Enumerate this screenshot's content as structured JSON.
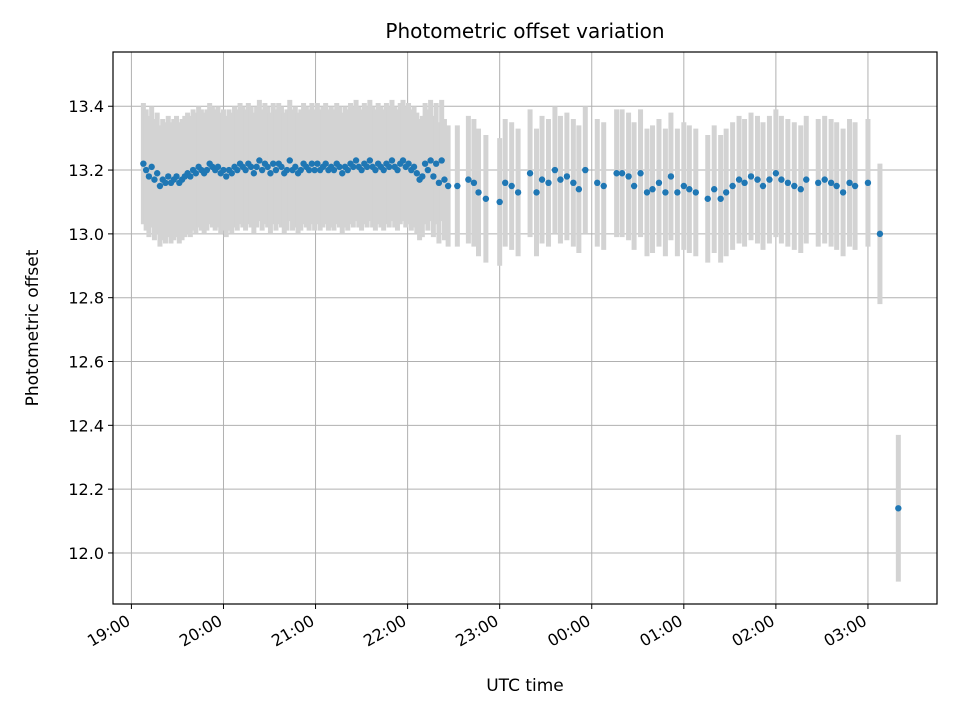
{
  "chart_data": {
    "type": "scatter",
    "title": "Photometric offset variation",
    "xlabel": "UTC time",
    "ylabel": "Photometric offset",
    "x_unit": "UTC time (hours, fractional) from 19:00 onwards; values past 24 wrap to next day",
    "xlim": [
      18.8,
      27.75
    ],
    "ylim": [
      11.84,
      13.57
    ],
    "x_ticks": [
      19,
      20,
      21,
      22,
      23,
      24,
      25,
      26,
      27
    ],
    "x_tick_labels": [
      "19:00",
      "20:00",
      "21:00",
      "22:00",
      "23:00",
      "00:00",
      "01:00",
      "02:00",
      "03:00"
    ],
    "y_ticks": [
      12.0,
      12.2,
      12.4,
      12.6,
      12.8,
      13.0,
      13.2,
      13.4
    ],
    "y_tick_labels": [
      "12.0",
      "12.2",
      "12.4",
      "12.6",
      "12.8",
      "13.0",
      "13.2",
      "13.4"
    ],
    "grid": true,
    "legend": "none",
    "colors": {
      "points": "#1f77b4",
      "errorbars": "#d3d3d3",
      "grid": "#b0b0b0"
    },
    "series": [
      {
        "points": [
          [
            19.13,
            13.22,
            0.19
          ],
          [
            19.16,
            13.2,
            0.19
          ],
          [
            19.19,
            13.18,
            0.19
          ],
          [
            19.22,
            13.21,
            0.19
          ],
          [
            19.25,
            13.17,
            0.19
          ],
          [
            19.28,
            13.19,
            0.19
          ],
          [
            19.31,
            13.15,
            0.19
          ],
          [
            19.34,
            13.17,
            0.19
          ],
          [
            19.37,
            13.16,
            0.19
          ],
          [
            19.4,
            13.18,
            0.19
          ],
          [
            19.43,
            13.16,
            0.19
          ],
          [
            19.46,
            13.17,
            0.19
          ],
          [
            19.49,
            13.18,
            0.19
          ],
          [
            19.52,
            13.16,
            0.19
          ],
          [
            19.55,
            13.17,
            0.19
          ],
          [
            19.58,
            13.18,
            0.19
          ],
          [
            19.61,
            13.19,
            0.19
          ],
          [
            19.64,
            13.18,
            0.19
          ],
          [
            19.67,
            13.2,
            0.19
          ],
          [
            19.7,
            13.19,
            0.19
          ],
          [
            19.73,
            13.21,
            0.19
          ],
          [
            19.76,
            13.2,
            0.19
          ],
          [
            19.79,
            13.19,
            0.19
          ],
          [
            19.82,
            13.2,
            0.19
          ],
          [
            19.85,
            13.22,
            0.19
          ],
          [
            19.88,
            13.21,
            0.19
          ],
          [
            19.91,
            13.2,
            0.19
          ],
          [
            19.94,
            13.21,
            0.19
          ],
          [
            19.97,
            13.19,
            0.19
          ],
          [
            20.0,
            13.2,
            0.19
          ],
          [
            20.03,
            13.18,
            0.19
          ],
          [
            20.06,
            13.2,
            0.19
          ],
          [
            20.09,
            13.19,
            0.19
          ],
          [
            20.12,
            13.21,
            0.19
          ],
          [
            20.15,
            13.2,
            0.19
          ],
          [
            20.18,
            13.22,
            0.19
          ],
          [
            20.21,
            13.21,
            0.19
          ],
          [
            20.24,
            13.2,
            0.19
          ],
          [
            20.27,
            13.22,
            0.19
          ],
          [
            20.3,
            13.21,
            0.19
          ],
          [
            20.33,
            13.19,
            0.19
          ],
          [
            20.36,
            13.21,
            0.19
          ],
          [
            20.39,
            13.23,
            0.19
          ],
          [
            20.42,
            13.2,
            0.19
          ],
          [
            20.45,
            13.22,
            0.19
          ],
          [
            20.48,
            13.21,
            0.19
          ],
          [
            20.51,
            13.19,
            0.19
          ],
          [
            20.54,
            13.22,
            0.19
          ],
          [
            20.57,
            13.2,
            0.19
          ],
          [
            20.6,
            13.22,
            0.19
          ],
          [
            20.63,
            13.21,
            0.19
          ],
          [
            20.66,
            13.19,
            0.19
          ],
          [
            20.69,
            13.2,
            0.19
          ],
          [
            20.72,
            13.23,
            0.19
          ],
          [
            20.75,
            13.2,
            0.19
          ],
          [
            20.78,
            13.21,
            0.19
          ],
          [
            20.81,
            13.19,
            0.19
          ],
          [
            20.84,
            13.2,
            0.19
          ],
          [
            20.87,
            13.22,
            0.19
          ],
          [
            20.9,
            13.21,
            0.19
          ],
          [
            20.93,
            13.2,
            0.19
          ],
          [
            20.96,
            13.22,
            0.19
          ],
          [
            20.99,
            13.2,
            0.19
          ],
          [
            21.02,
            13.22,
            0.19
          ],
          [
            21.05,
            13.2,
            0.19
          ],
          [
            21.08,
            13.21,
            0.19
          ],
          [
            21.11,
            13.22,
            0.19
          ],
          [
            21.14,
            13.2,
            0.19
          ],
          [
            21.17,
            13.21,
            0.19
          ],
          [
            21.2,
            13.2,
            0.19
          ],
          [
            21.23,
            13.22,
            0.19
          ],
          [
            21.26,
            13.21,
            0.19
          ],
          [
            21.29,
            13.19,
            0.19
          ],
          [
            21.32,
            13.21,
            0.19
          ],
          [
            21.35,
            13.2,
            0.19
          ],
          [
            21.38,
            13.22,
            0.19
          ],
          [
            21.41,
            13.21,
            0.19
          ],
          [
            21.44,
            13.23,
            0.19
          ],
          [
            21.47,
            13.21,
            0.19
          ],
          [
            21.5,
            13.2,
            0.19
          ],
          [
            21.53,
            13.22,
            0.19
          ],
          [
            21.56,
            13.21,
            0.19
          ],
          [
            21.59,
            13.23,
            0.19
          ],
          [
            21.62,
            13.21,
            0.19
          ],
          [
            21.65,
            13.2,
            0.19
          ],
          [
            21.68,
            13.22,
            0.19
          ],
          [
            21.71,
            13.21,
            0.19
          ],
          [
            21.74,
            13.2,
            0.19
          ],
          [
            21.77,
            13.22,
            0.19
          ],
          [
            21.8,
            13.21,
            0.19
          ],
          [
            21.83,
            13.23,
            0.19
          ],
          [
            21.86,
            13.21,
            0.19
          ],
          [
            21.89,
            13.2,
            0.19
          ],
          [
            21.92,
            13.22,
            0.19
          ],
          [
            21.95,
            13.23,
            0.19
          ],
          [
            21.98,
            13.21,
            0.19
          ],
          [
            22.01,
            13.22,
            0.19
          ],
          [
            22.04,
            13.2,
            0.19
          ],
          [
            22.07,
            13.21,
            0.19
          ],
          [
            22.1,
            13.19,
            0.19
          ],
          [
            22.13,
            13.17,
            0.19
          ],
          [
            22.16,
            13.18,
            0.19
          ],
          [
            22.19,
            13.22,
            0.19
          ],
          [
            22.22,
            13.2,
            0.19
          ],
          [
            22.25,
            13.23,
            0.19
          ],
          [
            22.28,
            13.18,
            0.19
          ],
          [
            22.31,
            13.22,
            0.19
          ],
          [
            22.34,
            13.16,
            0.19
          ],
          [
            22.37,
            13.23,
            0.19
          ],
          [
            22.4,
            13.17,
            0.19
          ],
          [
            22.44,
            13.15,
            0.19
          ],
          [
            22.54,
            13.15,
            0.19
          ],
          [
            22.66,
            13.17,
            0.2
          ],
          [
            22.72,
            13.16,
            0.2
          ],
          [
            22.77,
            13.13,
            0.2
          ],
          [
            22.85,
            13.11,
            0.2
          ],
          [
            23.0,
            13.1,
            0.2
          ],
          [
            23.06,
            13.16,
            0.2
          ],
          [
            23.13,
            13.15,
            0.2
          ],
          [
            23.2,
            13.13,
            0.2
          ],
          [
            23.33,
            13.19,
            0.2
          ],
          [
            23.4,
            13.13,
            0.2
          ],
          [
            23.46,
            13.17,
            0.2
          ],
          [
            23.53,
            13.16,
            0.2
          ],
          [
            23.6,
            13.2,
            0.2
          ],
          [
            23.66,
            13.17,
            0.2
          ],
          [
            23.73,
            13.18,
            0.2
          ],
          [
            23.8,
            13.16,
            0.2
          ],
          [
            23.86,
            13.14,
            0.2
          ],
          [
            23.93,
            13.2,
            0.2
          ],
          [
            24.06,
            13.16,
            0.2
          ],
          [
            24.13,
            13.15,
            0.2
          ],
          [
            24.27,
            13.19,
            0.2
          ],
          [
            24.33,
            13.19,
            0.2
          ],
          [
            24.4,
            13.18,
            0.2
          ],
          [
            24.46,
            13.15,
            0.2
          ],
          [
            24.53,
            13.19,
            0.2
          ],
          [
            24.6,
            13.13,
            0.2
          ],
          [
            24.66,
            13.14,
            0.2
          ],
          [
            24.73,
            13.16,
            0.2
          ],
          [
            24.8,
            13.13,
            0.2
          ],
          [
            24.86,
            13.18,
            0.2
          ],
          [
            24.93,
            13.13,
            0.2
          ],
          [
            25.0,
            13.15,
            0.2
          ],
          [
            25.06,
            13.14,
            0.2
          ],
          [
            25.13,
            13.13,
            0.2
          ],
          [
            25.26,
            13.11,
            0.2
          ],
          [
            25.33,
            13.14,
            0.2
          ],
          [
            25.4,
            13.11,
            0.2
          ],
          [
            25.46,
            13.13,
            0.2
          ],
          [
            25.53,
            13.15,
            0.2
          ],
          [
            25.6,
            13.17,
            0.2
          ],
          [
            25.66,
            13.16,
            0.2
          ],
          [
            25.73,
            13.18,
            0.2
          ],
          [
            25.8,
            13.17,
            0.2
          ],
          [
            25.86,
            13.15,
            0.2
          ],
          [
            25.93,
            13.17,
            0.2
          ],
          [
            26.0,
            13.19,
            0.2
          ],
          [
            26.06,
            13.17,
            0.2
          ],
          [
            26.13,
            13.16,
            0.2
          ],
          [
            26.2,
            13.15,
            0.2
          ],
          [
            26.27,
            13.14,
            0.2
          ],
          [
            26.33,
            13.17,
            0.2
          ],
          [
            26.46,
            13.16,
            0.2
          ],
          [
            26.53,
            13.17,
            0.2
          ],
          [
            26.6,
            13.16,
            0.2
          ],
          [
            26.66,
            13.15,
            0.2
          ],
          [
            26.73,
            13.13,
            0.2
          ],
          [
            26.8,
            13.16,
            0.2
          ],
          [
            26.86,
            13.15,
            0.2
          ],
          [
            27.0,
            13.16,
            0.2
          ],
          [
            27.13,
            13.0,
            0.22
          ],
          [
            27.33,
            12.14,
            0.23
          ]
        ]
      }
    ]
  }
}
